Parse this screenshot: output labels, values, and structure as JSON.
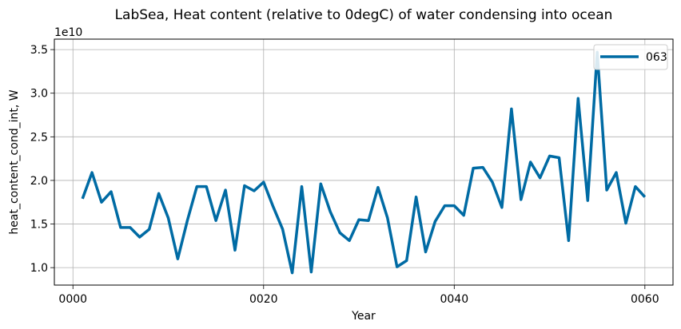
{
  "chart_data": {
    "type": "line",
    "title": "LabSea, Heat content (relative to 0degC) of water condensing into ocean",
    "xlabel": "Year",
    "ylabel": "heat_content_cond_int, W",
    "y_offset_label": "1e10",
    "xlim": [
      -1.95,
      62.95
    ],
    "ylim": [
      0.8,
      3.62
    ],
    "x_ticks": [
      0,
      20,
      40,
      60
    ],
    "x_tick_labels": [
      "0000",
      "0020",
      "0040",
      "0060"
    ],
    "y_ticks": [
      1.0,
      1.5,
      2.0,
      2.5,
      3.0,
      3.5
    ],
    "y_tick_labels": [
      "1.0",
      "1.5",
      "2.0",
      "2.5",
      "3.0",
      "3.5"
    ],
    "grid": true,
    "legend_position": "top-right",
    "series": [
      {
        "name": "063",
        "color": "#006ba4",
        "x": [
          1,
          2,
          3,
          4,
          5,
          6,
          7,
          8,
          9,
          10,
          11,
          12,
          13,
          14,
          15,
          16,
          17,
          18,
          19,
          20,
          21,
          22,
          23,
          24,
          25,
          26,
          27,
          28,
          29,
          30,
          31,
          32,
          33,
          34,
          35,
          36,
          37,
          38,
          39,
          40,
          41,
          42,
          43,
          44,
          45,
          46,
          47,
          48,
          49,
          50,
          51,
          52,
          53,
          54,
          55,
          56,
          57,
          58,
          59,
          60
        ],
        "values": [
          1.79,
          2.09,
          1.75,
          1.87,
          1.46,
          1.46,
          1.35,
          1.44,
          1.85,
          1.57,
          1.1,
          1.54,
          1.93,
          1.93,
          1.54,
          1.89,
          1.2,
          1.94,
          1.88,
          1.98,
          1.7,
          1.44,
          0.94,
          1.93,
          0.95,
          1.96,
          1.64,
          1.4,
          1.31,
          1.55,
          1.54,
          1.92,
          1.57,
          1.01,
          1.08,
          1.81,
          1.18,
          1.53,
          1.71,
          1.71,
          1.6,
          2.14,
          2.15,
          1.98,
          1.69,
          2.82,
          1.78,
          2.21,
          2.03,
          2.28,
          2.26,
          1.31,
          2.94,
          1.77,
          3.47,
          1.89,
          2.09,
          1.51,
          1.93,
          1.81
        ]
      }
    ]
  }
}
